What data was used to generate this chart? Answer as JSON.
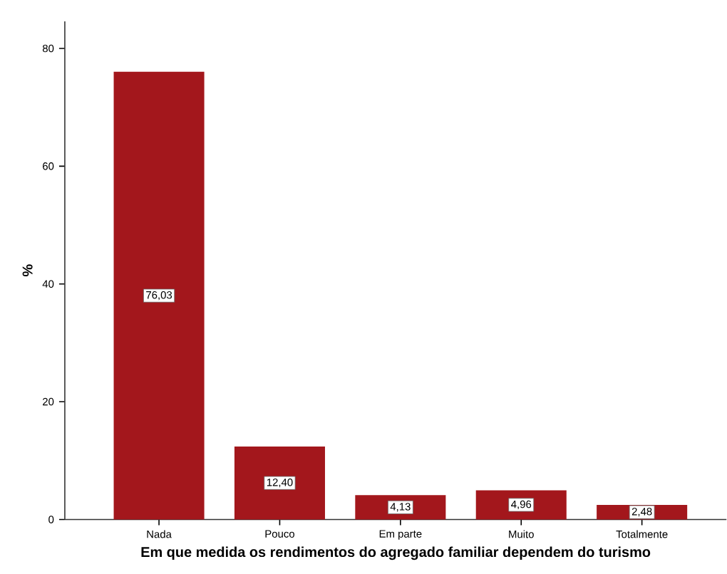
{
  "chart_data": {
    "type": "bar",
    "xlabel": "Em que medida os rendimentos do agregado familiar dependem do turismo",
    "ylabel": "%",
    "categories": [
      "Nada",
      "Pouco",
      "Em parte",
      "Muito",
      "Totalmente"
    ],
    "values": [
      76.03,
      12.4,
      4.13,
      4.96,
      2.48
    ],
    "value_labels": [
      "76,03",
      "12,40",
      "4,13",
      "4,96",
      "2,48"
    ],
    "color": "#a3171c",
    "ylim": [
      0,
      84.6
    ],
    "yticks": [
      0,
      20,
      40,
      60,
      80
    ]
  }
}
